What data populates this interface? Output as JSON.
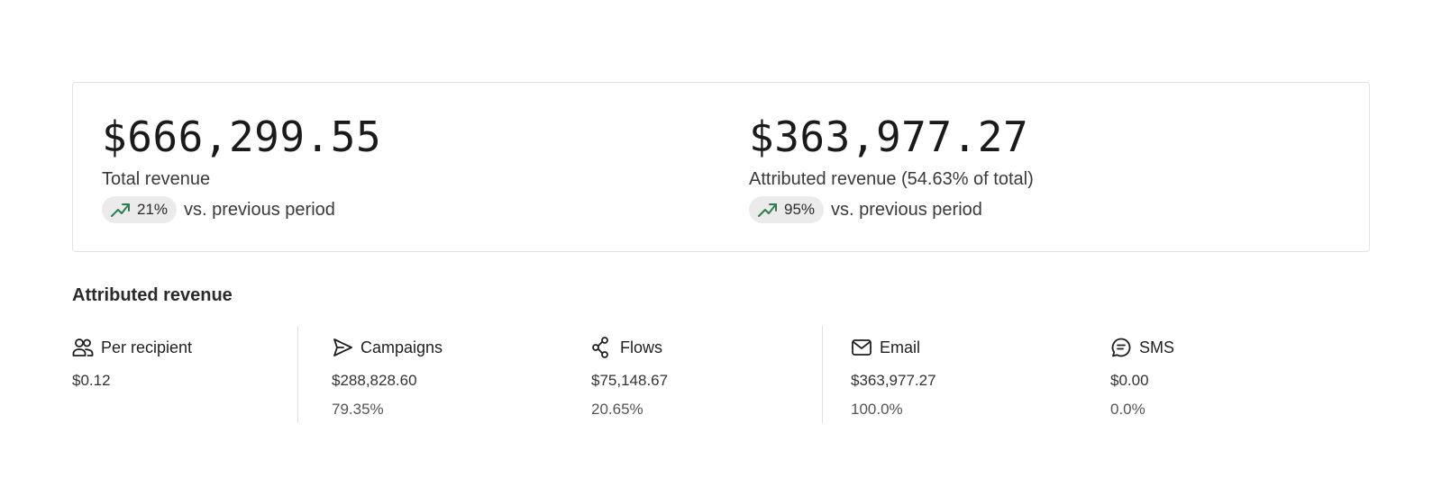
{
  "summary": {
    "total": {
      "value": "$666,299.55",
      "label": "Total revenue",
      "change": "21%",
      "change_suffix": "vs. previous period",
      "trend_icon": "trending-up-icon"
    },
    "attributed": {
      "value": "$363,977.27",
      "label": "Attributed revenue (54.63% of total)",
      "change": "95%",
      "change_suffix": "vs. previous period",
      "trend_icon": "trending-up-icon"
    },
    "trend_color": "#2e7d4f"
  },
  "section": {
    "title": "Attributed revenue"
  },
  "breakdown": [
    {
      "icon": "users-icon",
      "label": "Per recipient",
      "value": "$0.12",
      "percent": ""
    },
    {
      "icon": "send-icon",
      "label": "Campaigns",
      "value": "$288,828.60",
      "percent": "79.35%"
    },
    {
      "icon": "flow-icon",
      "label": "Flows",
      "value": "$75,148.67",
      "percent": "20.65%"
    },
    {
      "icon": "mail-icon",
      "label": "Email",
      "value": "$363,977.27",
      "percent": "100.0%"
    },
    {
      "icon": "sms-icon",
      "label": "SMS",
      "value": "$0.00",
      "percent": "0.0%"
    }
  ]
}
